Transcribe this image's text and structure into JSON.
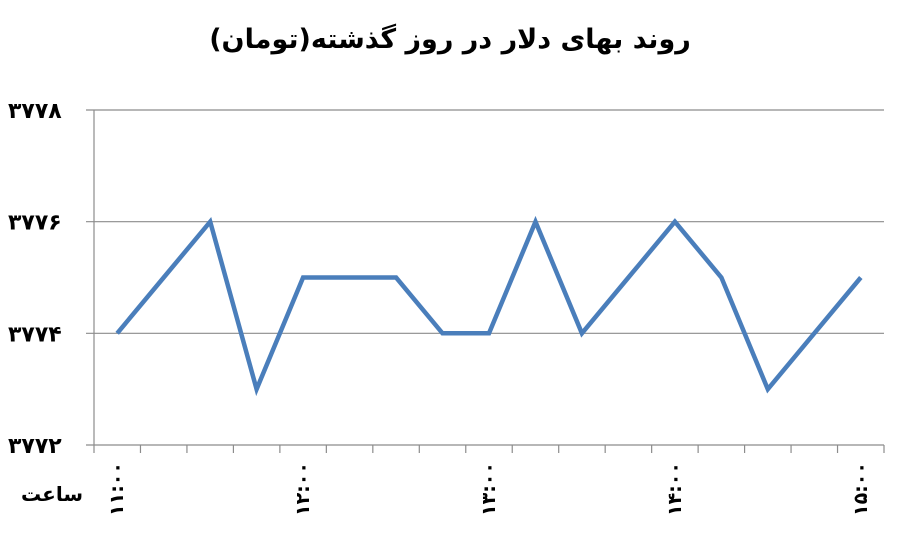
{
  "chart_data": {
    "type": "line",
    "title": "روند بهای دلار در روز گذشته(تومان)",
    "xlabel": "ساعت",
    "ylabel": "",
    "ylim": [
      3772,
      3778
    ],
    "yticks": [
      3772,
      3774,
      3776,
      3778
    ],
    "ytick_labels": [
      "۳۷۷۲",
      "۳۷۷۴",
      "۳۷۷۶",
      "۳۷۷۸"
    ],
    "x_labels": [
      "۱۱:۰۰",
      "۱۲:۰۰",
      "۱۳:۰۰",
      "۱۴:۰۰",
      "۱۵:۰۰"
    ],
    "x_label_positions": [
      0,
      4,
      8,
      12,
      16
    ],
    "grid": true,
    "legend": "none",
    "color": "#4a7ebb",
    "series": [
      {
        "values": [
          3774,
          3775,
          3776,
          3773,
          3775,
          3775,
          3775,
          3774,
          3774,
          3776,
          3774,
          3775,
          3776,
          3775,
          3773,
          3774,
          3775
        ]
      }
    ]
  }
}
